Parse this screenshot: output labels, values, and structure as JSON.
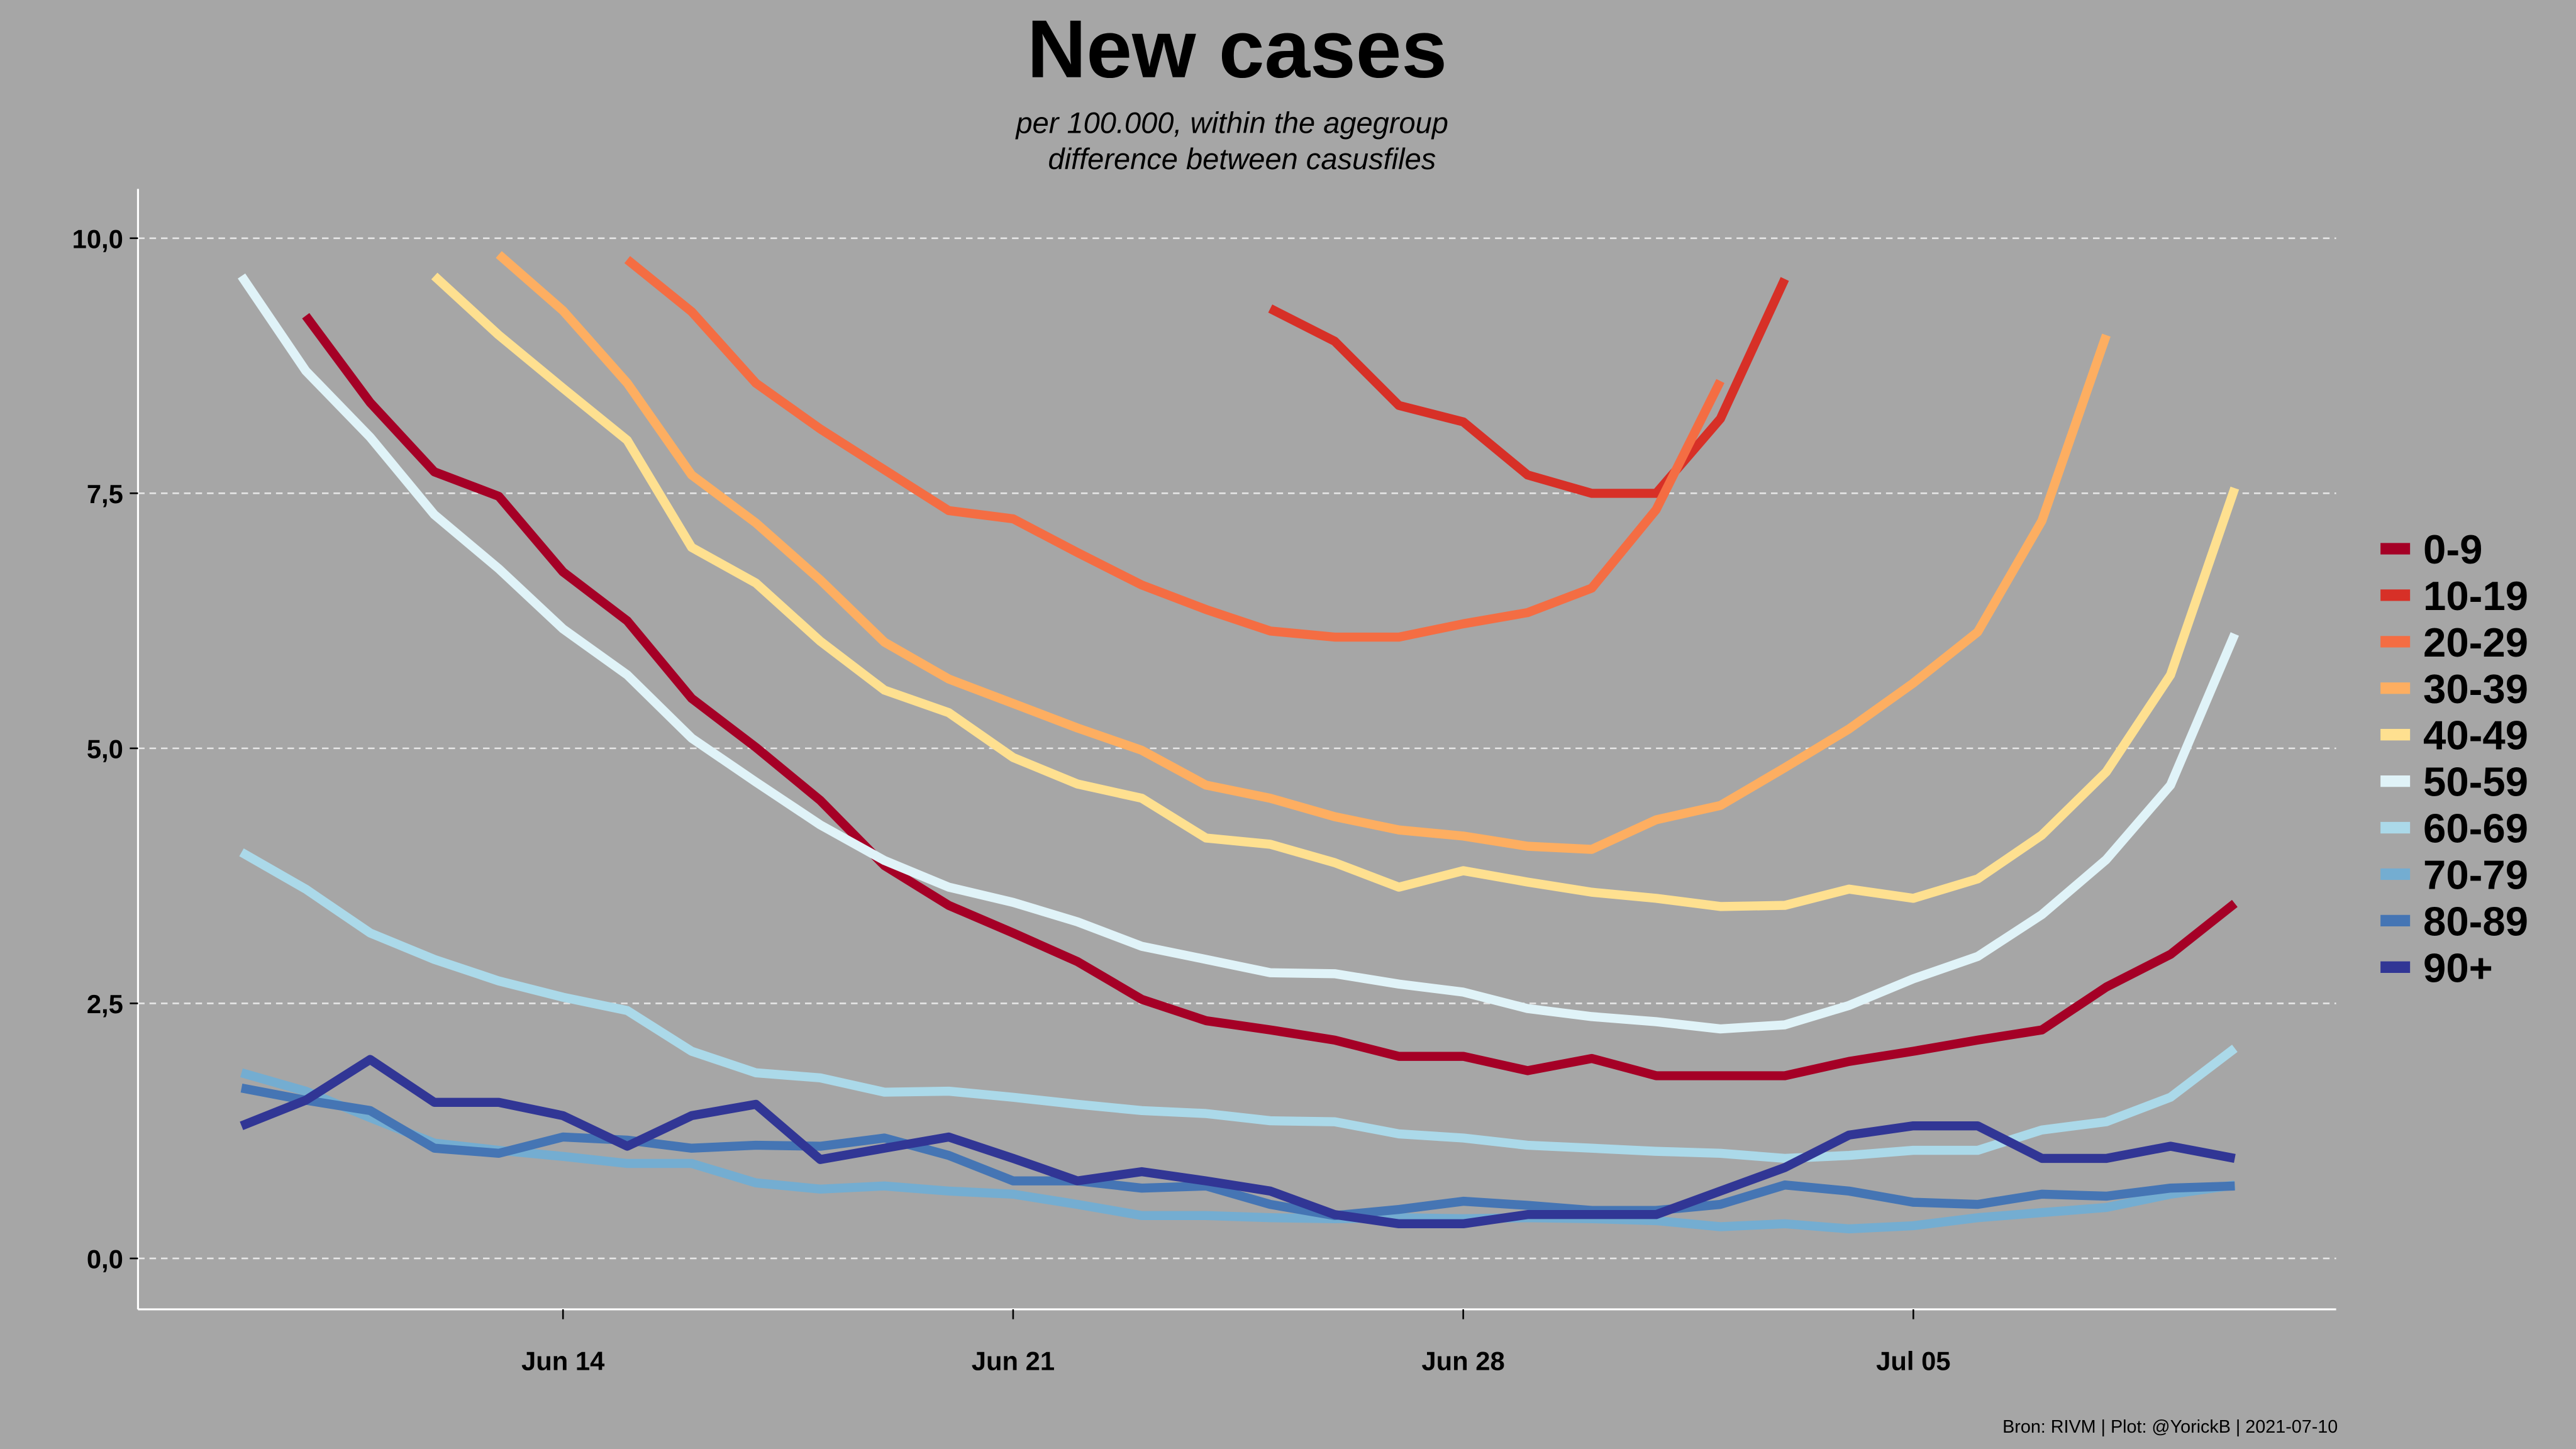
{
  "chart_data": {
    "type": "line",
    "title": "New cases",
    "subtitle_lines": [
      "per 100.000, within the agegroup",
      "difference between casusfiles"
    ],
    "caption": "Bron: RIVM | Plot: @YorickB  |  2021-07-10",
    "xlabel": "",
    "ylabel": "",
    "ylim": [
      0,
      10
    ],
    "y_ticks": [
      0,
      2.5,
      5,
      7.5,
      10
    ],
    "y_tick_labels": [
      "0,0",
      "2,5",
      "5,0",
      "7,5",
      "10,0"
    ],
    "x_tick_labels": [
      "Jun 14",
      "Jun 21",
      "Jun 28",
      "Jul 05"
    ],
    "x_tick_dates": [
      "2021-06-14",
      "2021-06-21",
      "2021-06-28",
      "2021-07-05"
    ],
    "x": [
      "2021-06-09",
      "2021-06-10",
      "2021-06-11",
      "2021-06-12",
      "2021-06-13",
      "2021-06-14",
      "2021-06-15",
      "2021-06-16",
      "2021-06-17",
      "2021-06-18",
      "2021-06-19",
      "2021-06-20",
      "2021-06-21",
      "2021-06-22",
      "2021-06-23",
      "2021-06-24",
      "2021-06-25",
      "2021-06-26",
      "2021-06-27",
      "2021-06-28",
      "2021-06-29",
      "2021-06-30",
      "2021-07-01",
      "2021-07-02",
      "2021-07-03",
      "2021-07-04",
      "2021-07-05",
      "2021-07-06",
      "2021-07-07",
      "2021-07-08",
      "2021-07-09",
      "2021-07-10"
    ],
    "grid": "horizontal dashed",
    "legend_position": "right",
    "series": [
      {
        "name": "0-9",
        "color": "#a50026",
        "values": [
          null,
          9.24,
          8.39,
          7.71,
          7.47,
          6.73,
          6.25,
          5.49,
          5.01,
          4.49,
          3.85,
          3.46,
          3.19,
          2.91,
          2.54,
          2.33,
          2.24,
          2.14,
          1.98,
          1.98,
          1.84,
          1.96,
          1.79,
          1.79,
          1.79,
          1.93,
          2.03,
          2.14,
          2.24,
          2.66,
          2.98,
          3.48
        ]
      },
      {
        "name": "10-19",
        "color": "#d73027",
        "values": [
          null,
          null,
          null,
          null,
          null,
          null,
          null,
          null,
          null,
          null,
          null,
          null,
          null,
          null,
          null,
          null,
          9.31,
          8.99,
          8.36,
          8.2,
          7.68,
          7.5,
          7.5,
          8.23,
          9.6,
          null,
          null,
          null,
          null,
          null,
          null,
          null
        ]
      },
      {
        "name": "20-29",
        "color": "#f46d43",
        "values": [
          null,
          null,
          null,
          null,
          null,
          null,
          9.79,
          9.28,
          8.58,
          8.13,
          7.73,
          7.33,
          7.25,
          6.92,
          6.6,
          6.36,
          6.15,
          6.09,
          6.09,
          6.22,
          6.33,
          6.57,
          7.34,
          8.6,
          null,
          null,
          null,
          null,
          null,
          null,
          null,
          null
        ]
      },
      {
        "name": "30-39",
        "color": "#fdae61",
        "values": [
          null,
          null,
          null,
          null,
          9.84,
          9.29,
          8.58,
          7.68,
          7.21,
          6.65,
          6.04,
          5.68,
          5.44,
          5.2,
          4.98,
          4.64,
          4.51,
          4.33,
          4.2,
          4.14,
          4.04,
          4.01,
          4.3,
          4.44,
          4.81,
          5.19,
          5.64,
          6.14,
          7.23,
          9.05,
          null,
          null
        ]
      },
      {
        "name": "40-49",
        "color": "#fee090",
        "values": [
          null,
          null,
          null,
          9.63,
          9.05,
          8.53,
          8.02,
          6.97,
          6.62,
          6.05,
          5.57,
          5.35,
          4.91,
          4.65,
          4.51,
          4.12,
          4.06,
          3.88,
          3.64,
          3.8,
          3.69,
          3.59,
          3.53,
          3.45,
          3.46,
          3.62,
          3.53,
          3.72,
          4.15,
          4.77,
          5.72,
          7.55
        ]
      },
      {
        "name": "50-59",
        "color": "#e0f3f8",
        "values": [
          9.63,
          8.7,
          8.05,
          7.29,
          6.76,
          6.17,
          5.72,
          5.1,
          4.67,
          4.25,
          3.9,
          3.64,
          3.49,
          3.3,
          3.06,
          2.93,
          2.8,
          2.79,
          2.69,
          2.61,
          2.45,
          2.37,
          2.32,
          2.25,
          2.29,
          2.48,
          2.74,
          2.96,
          3.37,
          3.91,
          4.64,
          6.12
        ]
      },
      {
        "name": "60-69",
        "color": "#abd9e9",
        "values": [
          3.98,
          3.62,
          3.19,
          2.93,
          2.72,
          2.56,
          2.43,
          2.03,
          1.82,
          1.77,
          1.63,
          1.64,
          1.58,
          1.51,
          1.45,
          1.42,
          1.35,
          1.34,
          1.22,
          1.18,
          1.11,
          1.08,
          1.05,
          1.03,
          0.98,
          1.01,
          1.06,
          1.06,
          1.26,
          1.34,
          1.58,
          2.06
        ]
      },
      {
        "name": "70-79",
        "color": "#74add1",
        "values": [
          1.82,
          1.64,
          1.38,
          1.13,
          1.06,
          1.0,
          0.93,
          0.93,
          0.74,
          0.68,
          0.71,
          0.66,
          0.63,
          0.53,
          0.42,
          0.42,
          0.4,
          0.39,
          0.4,
          0.39,
          0.4,
          0.39,
          0.37,
          0.31,
          0.34,
          0.29,
          0.32,
          0.4,
          0.45,
          0.5,
          0.63,
          0.72
        ]
      },
      {
        "name": "80-89",
        "color": "#4575b4",
        "values": [
          1.67,
          1.55,
          1.45,
          1.08,
          1.03,
          1.19,
          1.16,
          1.08,
          1.11,
          1.1,
          1.18,
          1.01,
          0.76,
          0.76,
          0.69,
          0.71,
          0.53,
          0.42,
          0.48,
          0.56,
          0.52,
          0.47,
          0.47,
          0.53,
          0.72,
          0.66,
          0.55,
          0.53,
          0.63,
          0.61,
          0.69,
          0.71
        ]
      },
      {
        "name": "90+",
        "color": "#313695",
        "values": [
          1.3,
          1.55,
          1.95,
          1.53,
          1.53,
          1.4,
          1.1,
          1.4,
          1.51,
          0.97,
          1.08,
          1.19,
          0.98,
          0.76,
          0.85,
          0.76,
          0.66,
          0.43,
          0.34,
          0.34,
          0.43,
          0.43,
          0.43,
          0.66,
          0.89,
          1.21,
          1.3,
          1.3,
          0.98,
          0.98,
          1.1,
          0.98
        ]
      }
    ]
  }
}
